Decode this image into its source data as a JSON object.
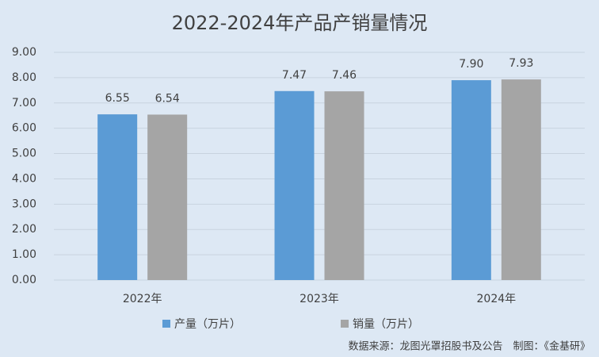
{
  "chart_data": {
    "type": "bar",
    "title": "2022-2024年产品产销量情况",
    "categories": [
      "2022年",
      "2023年",
      "2024年"
    ],
    "series": [
      {
        "name": "产量（万片）",
        "color": "#5b9bd5",
        "values": [
          6.55,
          7.47,
          7.9
        ],
        "value_labels": [
          "6.55",
          "7.47",
          "7.90"
        ]
      },
      {
        "name": "销量（万片）",
        "color": "#a5a5a5",
        "values": [
          6.54,
          7.46,
          7.93
        ],
        "value_labels": [
          "6.54",
          "7.46",
          "7.93"
        ]
      }
    ],
    "ylim": [
      0,
      9
    ],
    "yticks": [
      {
        "value": 0,
        "label": "0.00"
      },
      {
        "value": 1,
        "label": "1.00"
      },
      {
        "value": 2,
        "label": "2.00"
      },
      {
        "value": 3,
        "label": "3.00"
      },
      {
        "value": 4,
        "label": "4.00"
      },
      {
        "value": 5,
        "label": "5.00"
      },
      {
        "value": 6,
        "label": "6.00"
      },
      {
        "value": 7,
        "label": "7.00"
      },
      {
        "value": 8,
        "label": "8.00"
      },
      {
        "value": 9,
        "label": "9.00"
      }
    ],
    "grid": true,
    "legend": "bottom",
    "source": "数据来源：龙图光罩招股书及公告　制图：《金基研》"
  }
}
